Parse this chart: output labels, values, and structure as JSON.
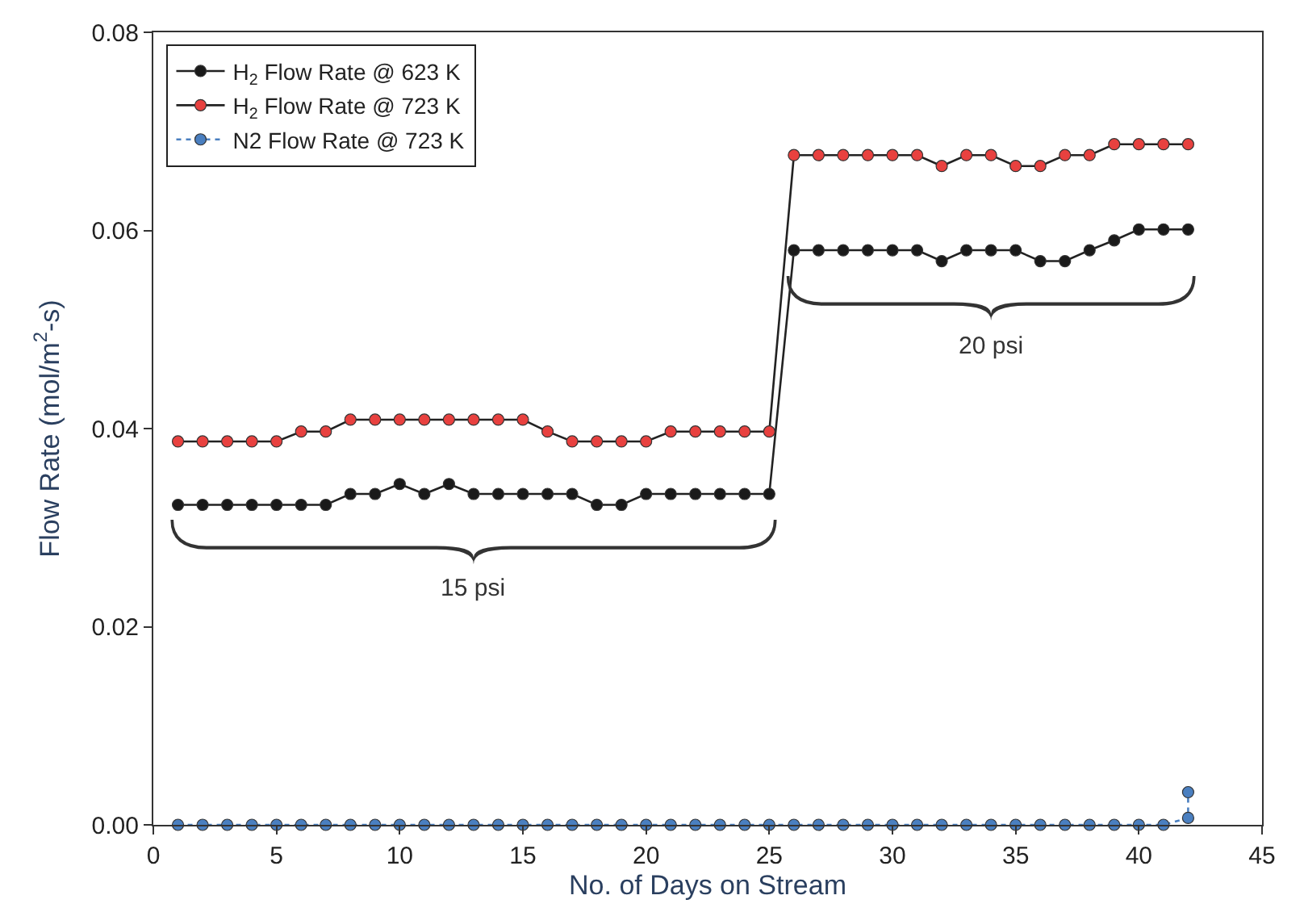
{
  "chart_data": {
    "type": "line",
    "xlabel": "No. of Days on Stream",
    "ylabel": "Flow Rate (mol/m$^{2}$-s)",
    "xlim": [
      0,
      45
    ],
    "xticks": [
      0,
      5,
      10,
      15,
      20,
      25,
      30,
      35,
      40,
      45
    ],
    "ylim": [
      0,
      0.08
    ],
    "yticks": [
      {
        "value": 0,
        "label": "0.00"
      },
      {
        "value": 0.02,
        "label": "0.02"
      },
      {
        "value": 0.04,
        "label": "0.04"
      },
      {
        "value": 0.06,
        "label": "0.06"
      },
      {
        "value": 0.08,
        "label": "0.08"
      }
    ],
    "legend": "top left",
    "marker": "circle",
    "series": [
      {
        "name": "H$_{2}$ Flow Rate @ 623 K",
        "color": "#1a1a1a",
        "line_style": "solid",
        "x": [
          1,
          2,
          3,
          4,
          5,
          6,
          7,
          8,
          9,
          10,
          11,
          12,
          13,
          14,
          15,
          16,
          17,
          18,
          19,
          20,
          21,
          22,
          23,
          24,
          25,
          26,
          27,
          28,
          29,
          30,
          31,
          32,
          33,
          34,
          35,
          36,
          37,
          38,
          39,
          40,
          41,
          42
        ],
        "values": [
          0.0323,
          0.0323,
          0.0323,
          0.0323,
          0.0323,
          0.0323,
          0.0323,
          0.0334,
          0.0334,
          0.0344,
          0.0334,
          0.0344,
          0.0334,
          0.0334,
          0.0334,
          0.0334,
          0.0334,
          0.0323,
          0.0323,
          0.0334,
          0.0334,
          0.0334,
          0.0334,
          0.0334,
          0.0334,
          0.058,
          0.058,
          0.058,
          0.058,
          0.058,
          0.058,
          0.0569,
          0.058,
          0.058,
          0.058,
          0.0569,
          0.0569,
          0.058,
          0.059,
          0.0601,
          0.0601,
          0.0601
        ]
      },
      {
        "name": "H$_{2}$ Flow Rate @ 723 K",
        "color": "#e8413f",
        "line_style": "solid",
        "x": [
          1,
          2,
          3,
          4,
          5,
          6,
          7,
          8,
          9,
          10,
          11,
          12,
          13,
          14,
          15,
          16,
          17,
          18,
          19,
          20,
          21,
          22,
          23,
          24,
          25,
          26,
          27,
          28,
          29,
          30,
          31,
          32,
          33,
          34,
          35,
          36,
          37,
          38,
          39,
          40,
          41,
          42
        ],
        "values": [
          0.0387,
          0.0387,
          0.0387,
          0.0387,
          0.0387,
          0.0397,
          0.0397,
          0.0409,
          0.0409,
          0.0409,
          0.0409,
          0.0409,
          0.0409,
          0.0409,
          0.0409,
          0.0397,
          0.0387,
          0.0387,
          0.0387,
          0.0387,
          0.0397,
          0.0397,
          0.0397,
          0.0397,
          0.0397,
          0.0676,
          0.0676,
          0.0676,
          0.0676,
          0.0676,
          0.0676,
          0.0665,
          0.0676,
          0.0676,
          0.0665,
          0.0665,
          0.0676,
          0.0676,
          0.0687,
          0.0687,
          0.0687,
          0.0687
        ]
      },
      {
        "name": "N2 Flow Rate @ 723 K",
        "color": "#4a7fc0",
        "line_style": "dotted",
        "x": [
          1,
          2,
          3,
          4,
          5,
          6,
          7,
          8,
          9,
          10,
          11,
          12,
          13,
          14,
          15,
          16,
          17,
          18,
          19,
          20,
          21,
          22,
          23,
          24,
          25,
          26,
          27,
          28,
          29,
          30,
          31,
          32,
          33,
          34,
          35,
          36,
          37,
          38,
          39,
          40,
          41,
          42,
          42
        ],
        "values": [
          0,
          0,
          0,
          0,
          0,
          0,
          0,
          0,
          0,
          0,
          0,
          0,
          0,
          0,
          0,
          0,
          0,
          0,
          0,
          0,
          0,
          0,
          0,
          0,
          0,
          0,
          0,
          0,
          0,
          0,
          0,
          0,
          0,
          0,
          0,
          0,
          0,
          0,
          0,
          0,
          0,
          0.0007,
          0.0033
        ]
      }
    ],
    "annotations": [
      "15 psi",
      "20 psi"
    ]
  }
}
